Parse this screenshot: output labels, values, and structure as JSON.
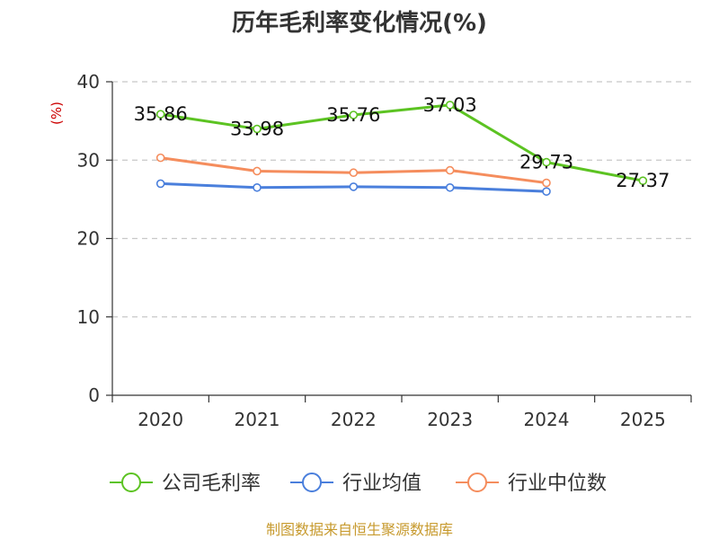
{
  "chart_data": {
    "type": "line",
    "title": "历年毛利率变化情况(%)",
    "ylabel": "(%)",
    "categories": [
      "2020",
      "2021",
      "2022",
      "2023",
      "2024",
      "2025"
    ],
    "ylim": [
      0,
      40
    ],
    "yticks": [
      "0",
      "10",
      "20",
      "30",
      "40"
    ],
    "grid": true,
    "legend_position": "bottom",
    "series": [
      {
        "name": "公司毛利率",
        "color": "#5cc322",
        "values": [
          35.86,
          33.98,
          35.76,
          37.03,
          29.73,
          27.37
        ],
        "labels": [
          "35.86",
          "33.98",
          "35.76",
          "37.03",
          "29.73",
          "27.37"
        ]
      },
      {
        "name": "行业均值",
        "color": "#4a7fdc",
        "values": [
          27.0,
          26.5,
          26.6,
          26.5,
          26.0,
          null
        ]
      },
      {
        "name": "行业中位数",
        "color": "#f58d5d",
        "values": [
          30.3,
          28.6,
          28.4,
          28.7,
          27.1,
          null
        ]
      }
    ]
  },
  "source": "制图数据来自恒生聚源数据库"
}
